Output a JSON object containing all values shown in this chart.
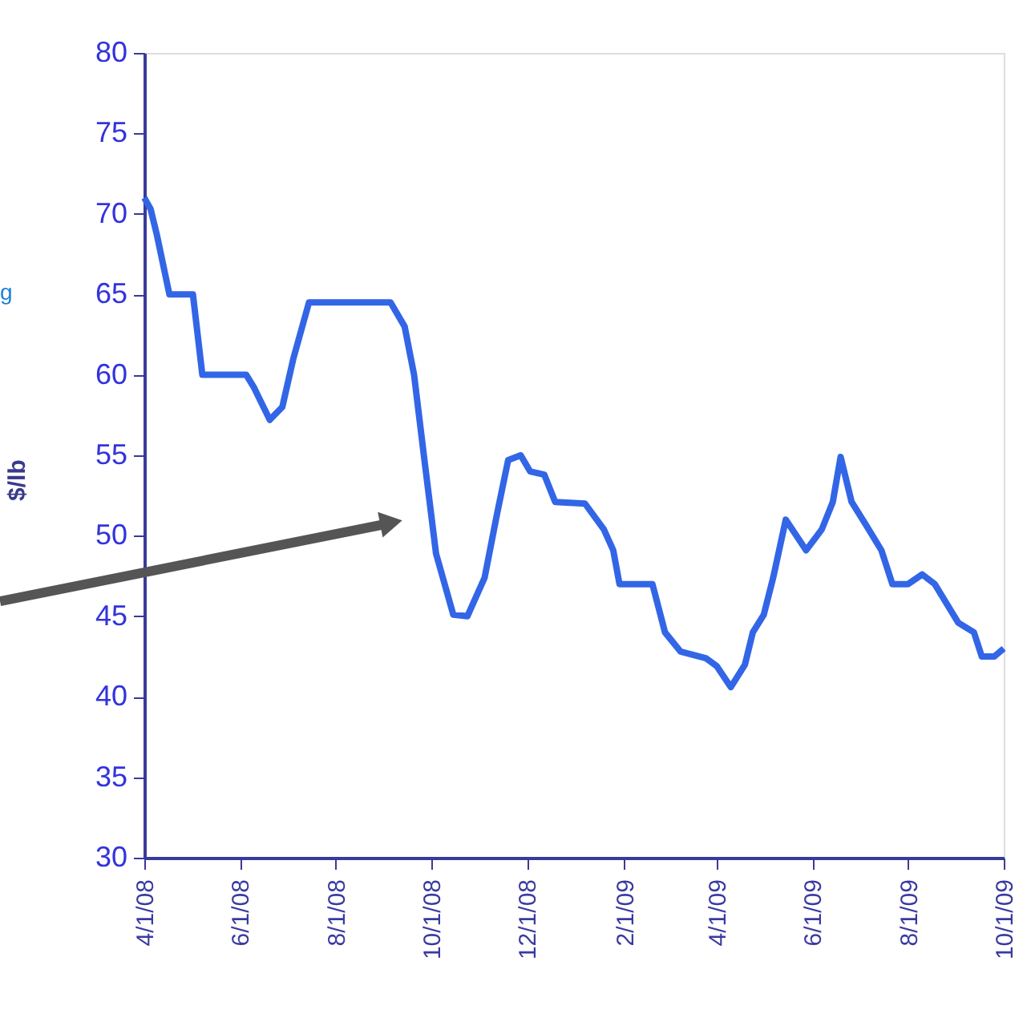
{
  "chart_data": {
    "type": "line",
    "ylabel": "$/lb",
    "annotations": [
      "g"
    ],
    "x": [
      "2008-04-01",
      "2008-04-05",
      "2008-04-09",
      "2008-04-17",
      "2008-05-02",
      "2008-05-08",
      "2008-06-05",
      "2008-06-10",
      "2008-06-20",
      "2008-06-28",
      "2008-07-05",
      "2008-07-15",
      "2008-09-05",
      "2008-09-14",
      "2008-09-20",
      "2008-09-27",
      "2008-10-04",
      "2008-10-15",
      "2008-10-24",
      "2008-11-04",
      "2008-11-12",
      "2008-11-19",
      "2008-11-27",
      "2008-12-03",
      "2008-12-12",
      "2008-12-19",
      "2009-01-07",
      "2009-01-19",
      "2009-01-25",
      "2009-01-29",
      "2009-02-19",
      "2009-02-27",
      "2009-03-09",
      "2009-03-25",
      "2009-04-01",
      "2009-04-10",
      "2009-04-19",
      "2009-04-24",
      "2009-05-01",
      "2009-05-07",
      "2009-05-15",
      "2009-05-28",
      "2009-06-07",
      "2009-06-14",
      "2009-06-19",
      "2009-06-26",
      "2009-07-05",
      "2009-07-15",
      "2009-07-22",
      "2009-08-01",
      "2009-08-10",
      "2009-08-18",
      "2009-09-02",
      "2009-09-12",
      "2009-09-17",
      "2009-09-25",
      "2009-10-01"
    ],
    "series": [
      {
        "color": "#3366e6",
        "values": [
          71.0,
          70.3,
          68.7,
          65.0,
          65.0,
          60.0,
          60.0,
          59.2,
          57.2,
          58.0,
          61.0,
          64.5,
          64.5,
          63.0,
          60.0,
          54.4,
          48.9,
          45.1,
          45.0,
          47.4,
          51.4,
          54.7,
          55.0,
          54.0,
          53.8,
          52.1,
          52.0,
          50.4,
          49.1,
          47.0,
          47.0,
          44.0,
          42.8,
          42.4,
          41.9,
          40.6,
          42.0,
          44.0,
          45.1,
          47.4,
          51.0,
          49.1,
          50.4,
          52.1,
          54.9,
          52.1,
          50.7,
          49.1,
          47.0,
          47.0,
          47.6,
          47.0,
          44.6,
          44.0,
          42.5,
          42.5,
          43.0
        ]
      }
    ],
    "xlim": [
      "2008-04-01",
      "2009-10-01"
    ],
    "xticks": [
      {
        "value": "2008-04-01",
        "label": "4/1/08"
      },
      {
        "value": "2008-06-01",
        "label": "6/1/08"
      },
      {
        "value": "2008-08-01",
        "label": "8/1/08"
      },
      {
        "value": "2008-10-01",
        "label": "10/1/08"
      },
      {
        "value": "2008-12-01",
        "label": "12/1/08"
      },
      {
        "value": "2009-02-01",
        "label": "2/1/09"
      },
      {
        "value": "2009-04-01",
        "label": "4/1/09"
      },
      {
        "value": "2009-06-01",
        "label": "6/1/09"
      },
      {
        "value": "2009-08-01",
        "label": "8/1/09"
      },
      {
        "value": "2009-10-01",
        "label": "10/1/09"
      }
    ],
    "ylim": [
      30,
      80
    ],
    "yticks": [
      30,
      35,
      40,
      45,
      50,
      55,
      60,
      65,
      70,
      75,
      80
    ],
    "grid": false,
    "marker": "none",
    "line_style": "solid"
  }
}
